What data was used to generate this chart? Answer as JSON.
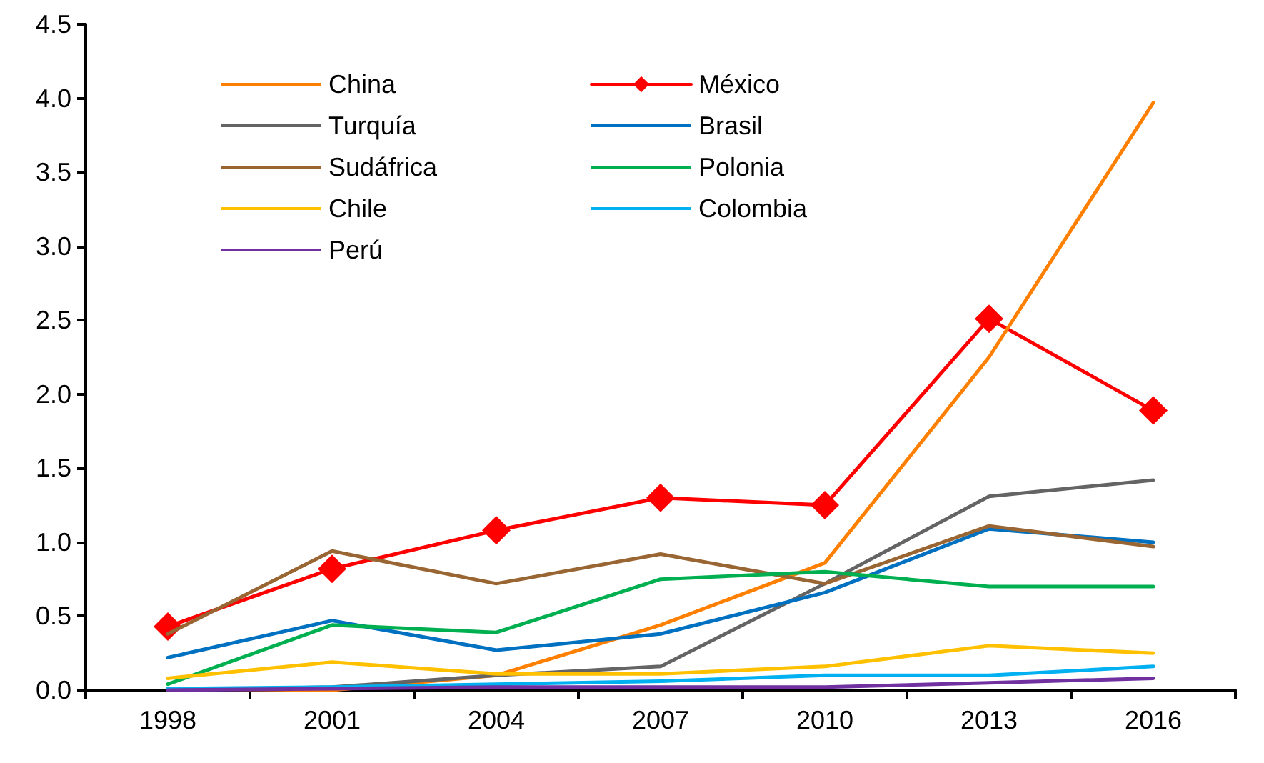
{
  "chart_data": {
    "type": "line",
    "categories": [
      "1998",
      "2001",
      "2004",
      "2007",
      "2010",
      "2013",
      "2016"
    ],
    "ylim": [
      0,
      4.5
    ],
    "yticks": [
      {
        "value": 0,
        "label": "0.0"
      },
      {
        "value": 0.5,
        "label": "0.5"
      },
      {
        "value": 1,
        "label": "1.0"
      },
      {
        "value": 1.5,
        "label": "1.5"
      },
      {
        "value": 2,
        "label": "2.0"
      },
      {
        "value": 2.5,
        "label": "2.5"
      },
      {
        "value": 3,
        "label": "3.0"
      },
      {
        "value": 3.5,
        "label": "3.5"
      },
      {
        "value": 4,
        "label": "4.0"
      },
      {
        "value": 4.5,
        "label": "4.5"
      }
    ],
    "grid": false,
    "legend": "top left",
    "marker": "none",
    "line_style": "solid",
    "series": [
      {
        "name": "China",
        "color": "#ff8000",
        "values": [
          0.01,
          0.0,
          0.1,
          0.44,
          0.86,
          2.25,
          3.97
        ]
      },
      {
        "name": "México",
        "color": "#ff0000",
        "marker": "diamond",
        "values": [
          0.43,
          0.82,
          1.08,
          1.3,
          1.25,
          2.51,
          1.89
        ]
      },
      {
        "name": "Turquía",
        "color": "#646464",
        "values": [
          0.0,
          0.02,
          0.1,
          0.16,
          0.72,
          1.31,
          1.42
        ]
      },
      {
        "name": "Brasil",
        "color": "#0070c0",
        "values": [
          0.22,
          0.47,
          0.27,
          0.38,
          0.66,
          1.09,
          1.0
        ]
      },
      {
        "name": "Sudáfrica",
        "color": "#996633",
        "values": [
          0.38,
          0.94,
          0.72,
          0.92,
          0.72,
          1.11,
          0.97
        ]
      },
      {
        "name": "Polonia",
        "color": "#00b050",
        "values": [
          0.04,
          0.44,
          0.39,
          0.75,
          0.8,
          0.7,
          0.7
        ]
      },
      {
        "name": "Chile",
        "color": "#ffc000",
        "values": [
          0.08,
          0.19,
          0.11,
          0.11,
          0.16,
          0.3,
          0.25
        ]
      },
      {
        "name": "Colombia",
        "color": "#00b0f0",
        "values": [
          0.01,
          0.02,
          0.04,
          0.06,
          0.1,
          0.1,
          0.16
        ]
      },
      {
        "name": "Perú",
        "color": "#7030a0",
        "values": [
          0.0,
          0.01,
          0.02,
          0.02,
          0.02,
          0.05,
          0.08
        ]
      }
    ]
  }
}
